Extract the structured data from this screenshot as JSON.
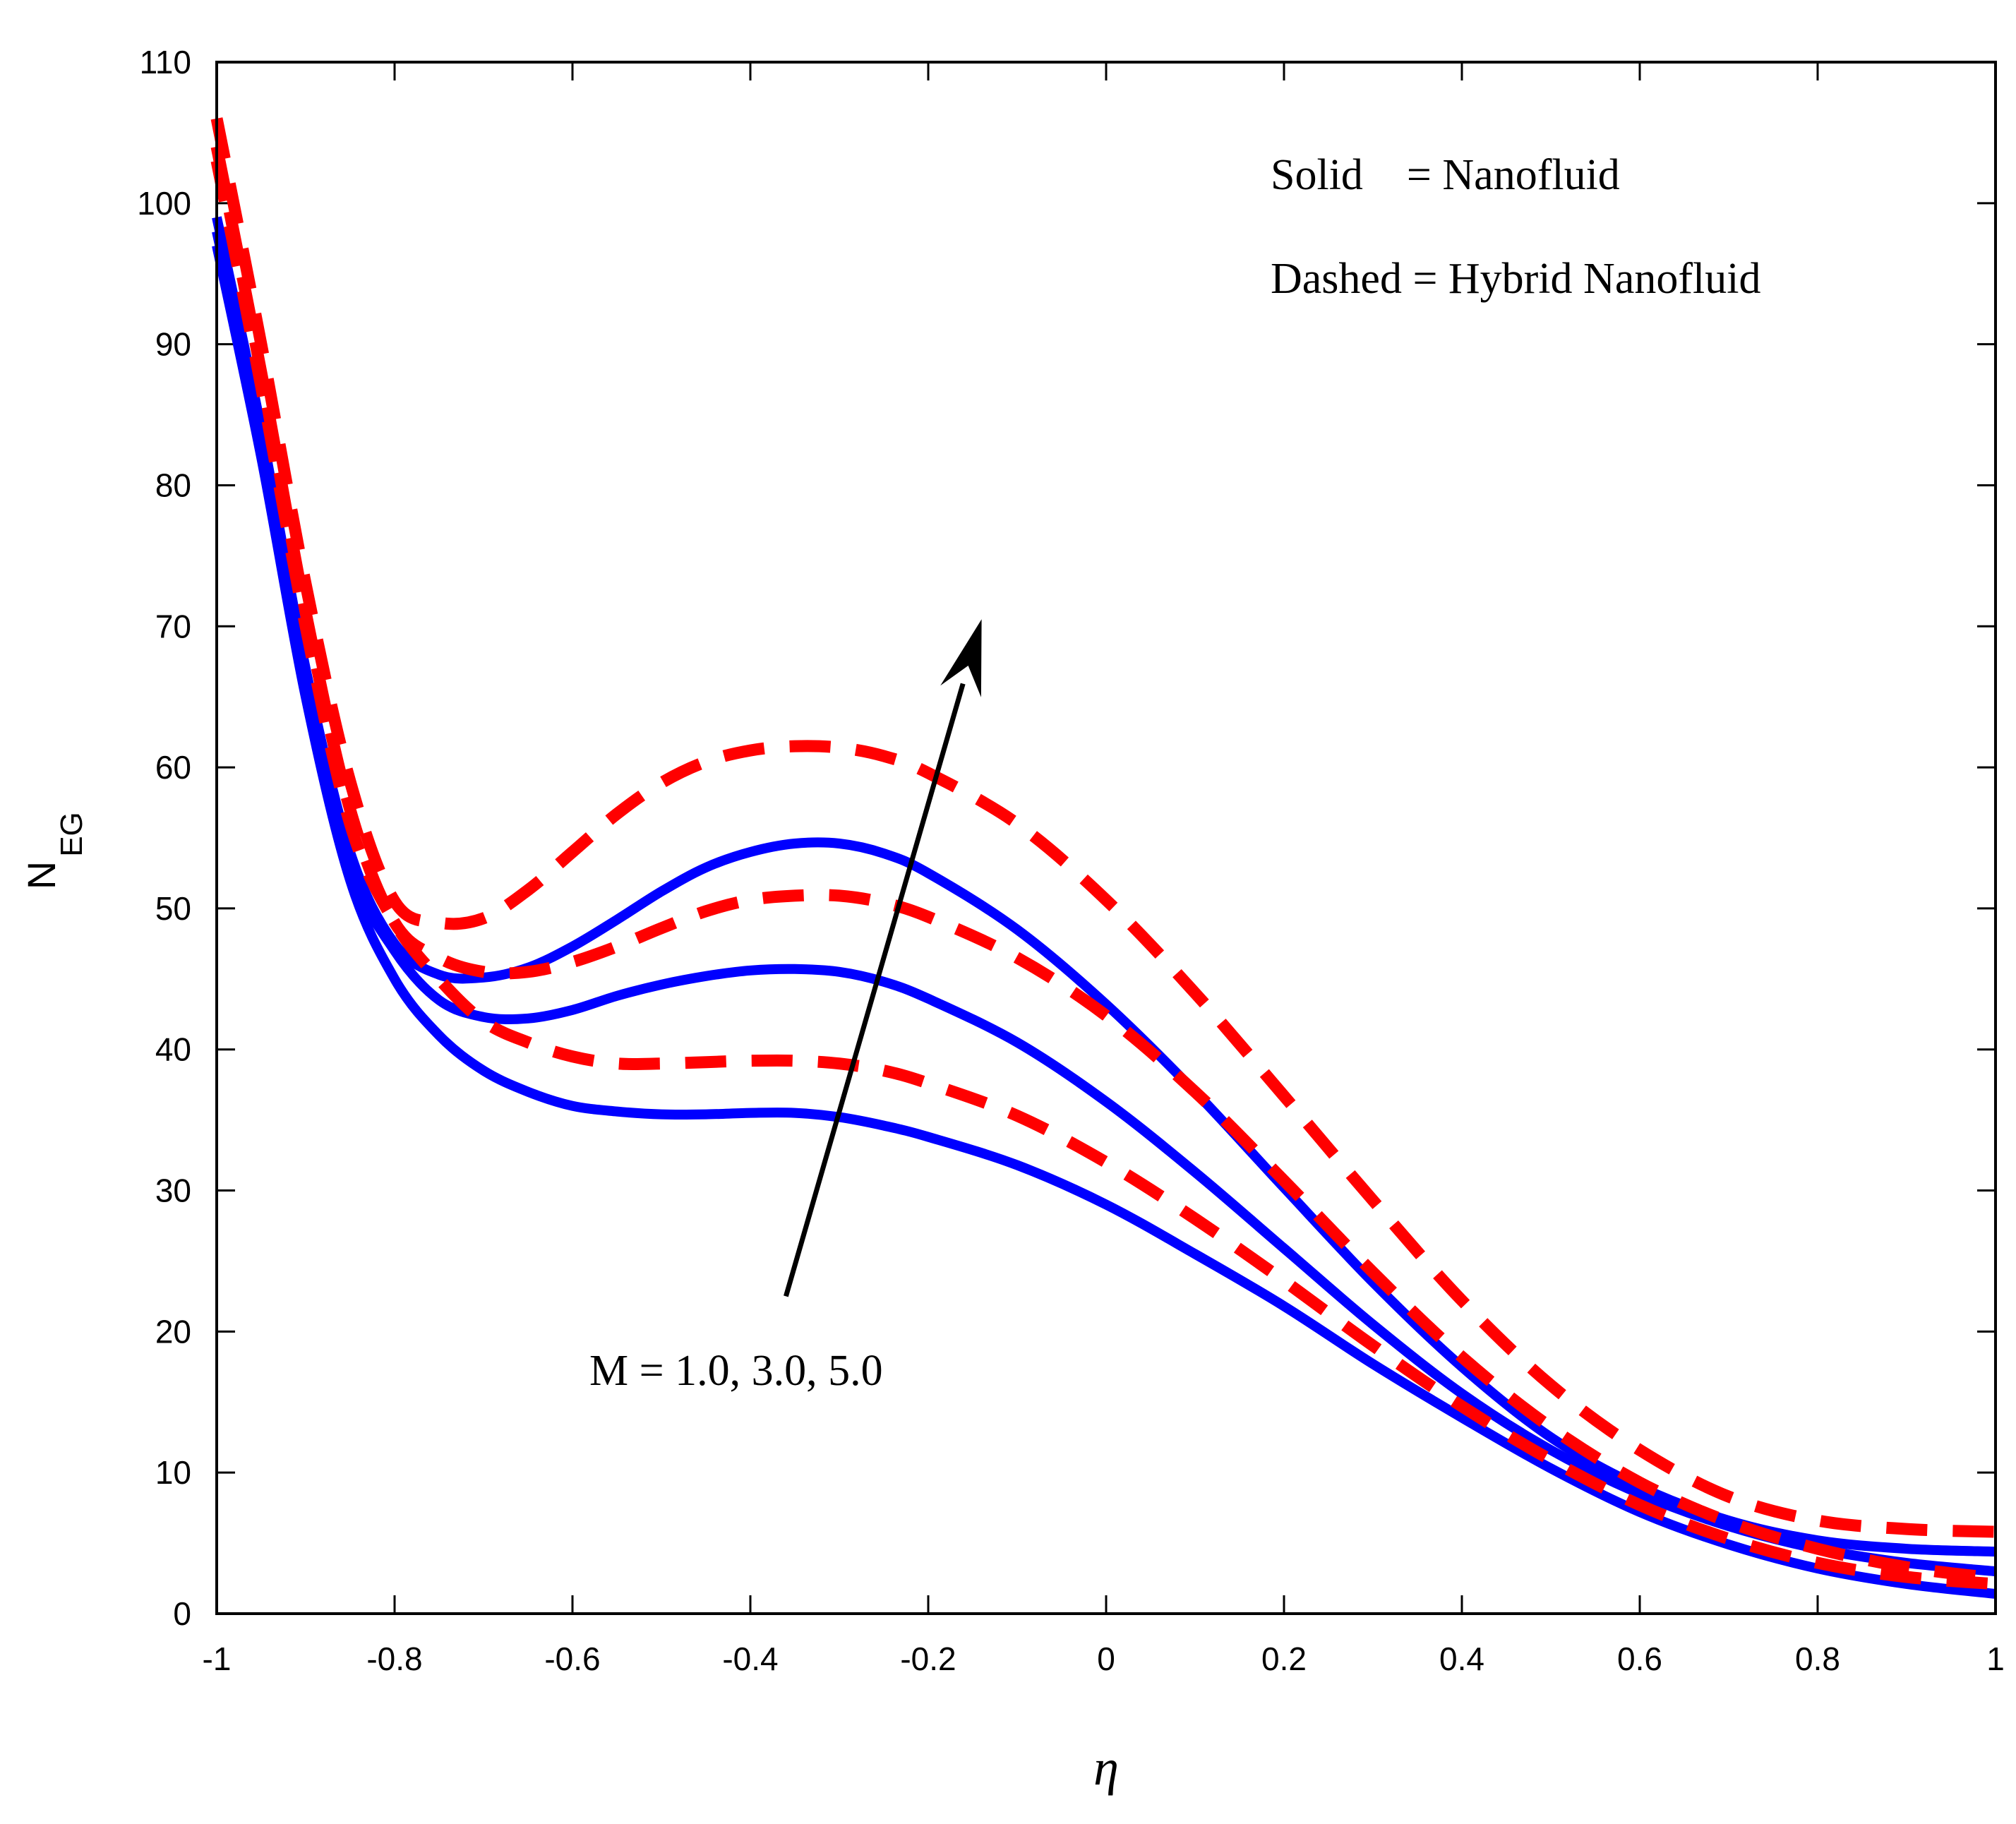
{
  "chart_data": {
    "type": "line",
    "title": "",
    "xlabel": "η",
    "ylabel_main": "N",
    "ylabel_sub": "EG",
    "xlim": [
      -1,
      1
    ],
    "ylim": [
      0,
      110
    ],
    "xticks": [
      -1,
      -0.8,
      -0.6,
      -0.4,
      -0.2,
      0,
      0.2,
      0.4,
      0.6,
      0.8,
      1
    ],
    "xtick_labels": [
      "-1",
      "-0.8",
      "-0.6",
      "-0.4",
      "-0.2",
      "0",
      "0.2",
      "0.4",
      "0.6",
      "0.8",
      "1"
    ],
    "yticks": [
      0,
      10,
      20,
      30,
      40,
      50,
      60,
      70,
      80,
      90,
      100,
      110
    ],
    "ytick_labels": [
      "0",
      "10",
      "20",
      "30",
      "40",
      "50",
      "60",
      "70",
      "80",
      "90",
      "100",
      "110"
    ],
    "legend": {
      "line1": "Solid    = Nanofluid",
      "line2": "Dashed = Hybrid Nanofluid",
      "placement": "top-right"
    },
    "annotation": {
      "text": "M = 1.0, 3.0, 5.0",
      "arrow_from": [
        -0.36,
        22.5
      ],
      "arrow_to": [
        -0.14,
        70.5
      ]
    },
    "colors": {
      "solid": "#0000ff",
      "dashed": "#ff0000",
      "arrow": "#000000"
    },
    "series": [
      {
        "name": "Nanofluid M=1.0",
        "style": "solid",
        "x": [
          -1,
          -0.95,
          -0.9,
          -0.85,
          -0.8,
          -0.75,
          -0.7,
          -0.65,
          -0.6,
          -0.55,
          -0.5,
          -0.45,
          -0.4,
          -0.35,
          -0.3,
          -0.25,
          -0.2,
          -0.1,
          0,
          0.1,
          0.2,
          0.3,
          0.4,
          0.5,
          0.6,
          0.7,
          0.8,
          0.9,
          1.0
        ],
        "y": [
          97,
          82,
          65,
          52,
          45,
          41,
          38.5,
          37,
          36,
          35.6,
          35.4,
          35.4,
          35.5,
          35.5,
          35.2,
          34.6,
          33.8,
          31.8,
          29,
          25.5,
          21.8,
          17.7,
          13.9,
          10.3,
          7.2,
          4.9,
          3.2,
          2.1,
          1.4
        ]
      },
      {
        "name": "Nanofluid M=3.0",
        "style": "solid",
        "x": [
          -1,
          -0.95,
          -0.9,
          -0.85,
          -0.8,
          -0.75,
          -0.7,
          -0.65,
          -0.6,
          -0.55,
          -0.5,
          -0.45,
          -0.4,
          -0.35,
          -0.3,
          -0.25,
          -0.2,
          -0.1,
          0,
          0.1,
          0.2,
          0.3,
          0.4,
          0.5,
          0.6,
          0.7,
          0.8,
          0.9,
          1.0
        ],
        "y": [
          98,
          83,
          66,
          53,
          47,
          43.5,
          42.3,
          42.2,
          42.8,
          43.8,
          44.6,
          45.2,
          45.6,
          45.7,
          45.5,
          44.8,
          43.6,
          40.5,
          36.3,
          31.3,
          25.9,
          20.5,
          15.6,
          11.6,
          8.5,
          6.2,
          4.6,
          3.6,
          3.0
        ]
      },
      {
        "name": "Nanofluid M=5.0",
        "style": "solid",
        "x": [
          -1,
          -0.95,
          -0.9,
          -0.85,
          -0.8,
          -0.75,
          -0.7,
          -0.65,
          -0.6,
          -0.55,
          -0.5,
          -0.45,
          -0.4,
          -0.35,
          -0.3,
          -0.25,
          -0.2,
          -0.1,
          0,
          0.1,
          0.2,
          0.3,
          0.4,
          0.5,
          0.6,
          0.7,
          0.8,
          0.9,
          1.0
        ],
        "y": [
          99,
          84,
          67,
          54,
          47.5,
          45.3,
          45.1,
          45.8,
          47.3,
          49.2,
          51.2,
          52.9,
          54.0,
          54.6,
          54.6,
          53.9,
          52.5,
          48.5,
          43.2,
          37.0,
          30.2,
          23.5,
          17.5,
          12.5,
          9.0,
          6.6,
          5.2,
          4.6,
          4.4
        ]
      },
      {
        "name": "Hybrid Nanofluid M=1.0",
        "style": "dashed",
        "x": [
          -1,
          -0.95,
          -0.9,
          -0.85,
          -0.8,
          -0.75,
          -0.7,
          -0.65,
          -0.6,
          -0.55,
          -0.5,
          -0.45,
          -0.4,
          -0.35,
          -0.3,
          -0.25,
          -0.2,
          -0.1,
          0,
          0.1,
          0.2,
          0.3,
          0.4,
          0.5,
          0.6,
          0.7,
          0.8,
          0.9,
          1.0
        ],
        "y": [
          103,
          87,
          70,
          56,
          49,
          45,
          42,
          40.5,
          39.5,
          39.0,
          39.0,
          39.1,
          39.2,
          39.2,
          39.0,
          38.5,
          37.6,
          35.3,
          32.0,
          28.0,
          23.6,
          19.0,
          14.7,
          10.9,
          7.7,
          5.3,
          3.6,
          2.6,
          2.1
        ]
      },
      {
        "name": "Hybrid Nanofluid M=3.0",
        "style": "dashed",
        "x": [
          -1,
          -0.95,
          -0.9,
          -0.85,
          -0.8,
          -0.75,
          -0.7,
          -0.65,
          -0.6,
          -0.55,
          -0.5,
          -0.45,
          -0.4,
          -0.35,
          -0.3,
          -0.25,
          -0.2,
          -0.1,
          0,
          0.1,
          0.2,
          0.3,
          0.4,
          0.5,
          0.6,
          0.7,
          0.8,
          0.9,
          1.0
        ],
        "y": [
          104,
          88,
          71,
          57,
          49,
          46.5,
          45.5,
          45.5,
          46.2,
          47.3,
          48.6,
          49.8,
          50.6,
          50.9,
          50.9,
          50.4,
          49.4,
          46.5,
          42.4,
          37.0,
          30.7,
          24.2,
          18.2,
          13.2,
          9.3,
          6.5,
          4.6,
          3.3,
          2.5
        ]
      },
      {
        "name": "Hybrid Nanofluid M=5.0",
        "style": "dashed",
        "x": [
          -1,
          -0.95,
          -0.9,
          -0.85,
          -0.8,
          -0.75,
          -0.7,
          -0.65,
          -0.6,
          -0.55,
          -0.5,
          -0.45,
          -0.4,
          -0.35,
          -0.3,
          -0.25,
          -0.2,
          -0.1,
          0,
          0.1,
          0.2,
          0.3,
          0.4,
          0.5,
          0.6,
          0.7,
          0.8,
          0.9,
          1.0
        ],
        "y": [
          106,
          90,
          73,
          59,
          50.5,
          49,
          49.3,
          51.3,
          54.0,
          56.7,
          58.9,
          60.4,
          61.2,
          61.5,
          61.4,
          60.8,
          59.6,
          56.0,
          50.6,
          44.0,
          36.7,
          29.3,
          22.2,
          16.2,
          11.6,
          8.3,
          6.6,
          6.0,
          5.8
        ]
      }
    ]
  }
}
